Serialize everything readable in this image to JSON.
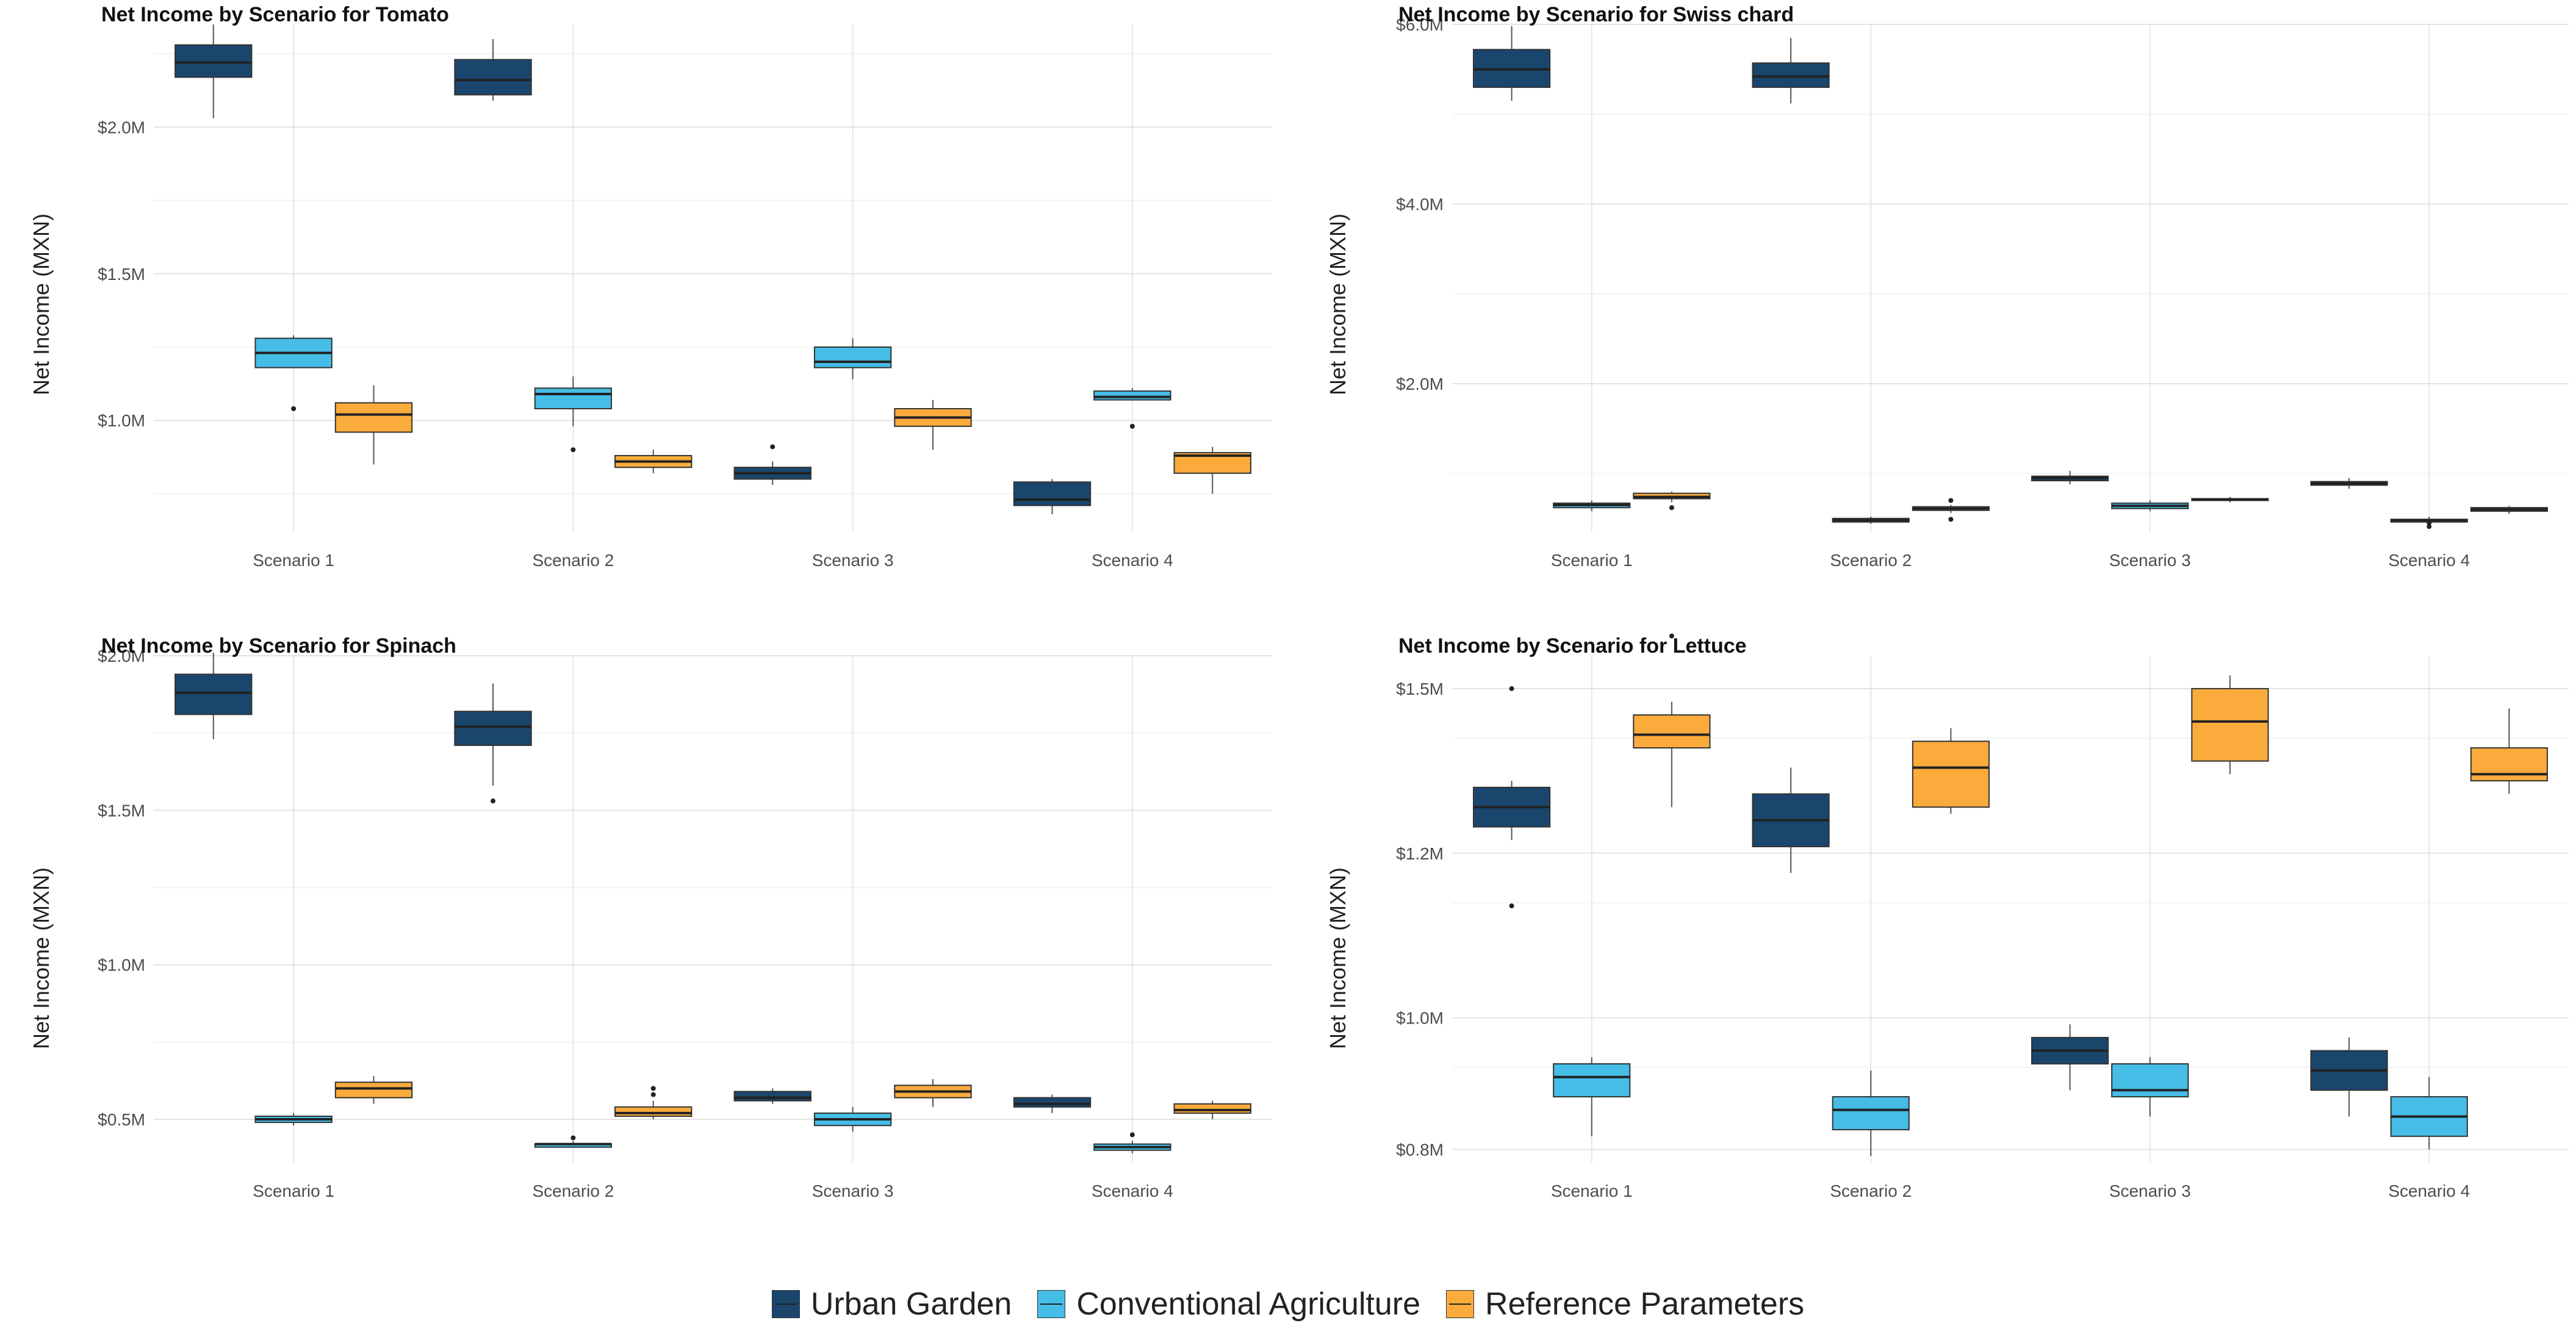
{
  "colors": {
    "Urban Garden": "#1a466e",
    "Conventional Agriculture": "#45bde7",
    "Reference Parameters": "#fbab3c"
  },
  "legend": {
    "items": [
      "Urban Garden",
      "Conventional Agriculture",
      "Reference Parameters"
    ]
  },
  "chart_data": [
    {
      "type": "boxplot",
      "title": "Net Income by Scenario for Tomato",
      "ylabel": "Net Income (MXN)",
      "xlabel": "",
      "ylim": [
        0.62,
        2.35
      ],
      "yticks": [
        2.0,
        1.5,
        1.0
      ],
      "ytick_labels": [
        "$2.0M",
        "$1.5M",
        "$1.0M"
      ],
      "categories": [
        "Scenario 1",
        "Scenario 2",
        "Scenario 3",
        "Scenario 4"
      ],
      "grid": true,
      "series": [
        {
          "name": "Urban Garden",
          "boxes": [
            {
              "min": 2.03,
              "q1": 2.17,
              "median": 2.22,
              "q3": 2.28,
              "max": 2.35,
              "outliers": []
            },
            {
              "min": 2.09,
              "q1": 2.11,
              "median": 2.16,
              "q3": 2.23,
              "max": 2.3,
              "outliers": []
            },
            {
              "min": 0.78,
              "q1": 0.8,
              "median": 0.82,
              "q3": 0.84,
              "max": 0.86,
              "outliers": [
                0.91
              ]
            },
            {
              "min": 0.68,
              "q1": 0.71,
              "median": 0.73,
              "q3": 0.79,
              "max": 0.8,
              "outliers": []
            }
          ]
        },
        {
          "name": "Conventional Agriculture",
          "boxes": [
            {
              "min": 1.18,
              "q1": 1.18,
              "median": 1.23,
              "q3": 1.28,
              "max": 1.29,
              "outliers": [
                1.04
              ]
            },
            {
              "min": 0.98,
              "q1": 1.04,
              "median": 1.09,
              "q3": 1.11,
              "max": 1.15,
              "outliers": [
                0.9
              ]
            },
            {
              "min": 1.14,
              "q1": 1.18,
              "median": 1.2,
              "q3": 1.25,
              "max": 1.28,
              "outliers": []
            },
            {
              "min": 1.07,
              "q1": 1.07,
              "median": 1.08,
              "q3": 1.1,
              "max": 1.11,
              "outliers": [
                0.98
              ]
            }
          ]
        },
        {
          "name": "Reference Parameters",
          "boxes": [
            {
              "min": 0.85,
              "q1": 0.96,
              "median": 1.02,
              "q3": 1.06,
              "max": 1.12,
              "outliers": []
            },
            {
              "min": 0.82,
              "q1": 0.84,
              "median": 0.86,
              "q3": 0.88,
              "max": 0.9,
              "outliers": []
            },
            {
              "min": 0.9,
              "q1": 0.98,
              "median": 1.01,
              "q3": 1.04,
              "max": 1.07,
              "outliers": []
            },
            {
              "min": 0.75,
              "q1": 0.82,
              "median": 0.88,
              "q3": 0.89,
              "max": 0.91,
              "outliers": []
            }
          ]
        }
      ]
    },
    {
      "type": "boxplot",
      "title": "Net Income by Scenario for Swiss chard",
      "ylabel": "Net Income (MXN)",
      "xlabel": "",
      "ylim": [
        0.35,
        6.0
      ],
      "yticks": [
        6.0,
        4.0,
        2.0
      ],
      "ytick_labels": [
        "$6.0M",
        "$4.0M",
        "$2.0M"
      ],
      "categories": [
        "Scenario 1",
        "Scenario 2",
        "Scenario 3",
        "Scenario 4"
      ],
      "grid": true,
      "series": [
        {
          "name": "Urban Garden",
          "boxes": [
            {
              "min": 5.15,
              "q1": 5.3,
              "median": 5.5,
              "q3": 5.72,
              "max": 5.98,
              "outliers": []
            },
            {
              "min": 5.12,
              "q1": 5.3,
              "median": 5.42,
              "q3": 5.57,
              "max": 5.85,
              "outliers": []
            },
            {
              "min": 0.88,
              "q1": 0.92,
              "median": 0.95,
              "q3": 0.97,
              "max": 1.03,
              "outliers": []
            },
            {
              "min": 0.83,
              "q1": 0.87,
              "median": 0.89,
              "q3": 0.91,
              "max": 0.95,
              "outliers": []
            }
          ]
        },
        {
          "name": "Conventional Agriculture",
          "boxes": [
            {
              "min": 0.58,
              "q1": 0.62,
              "median": 0.65,
              "q3": 0.67,
              "max": 0.7,
              "outliers": []
            },
            {
              "min": 0.44,
              "q1": 0.46,
              "median": 0.48,
              "q3": 0.5,
              "max": 0.52,
              "outliers": []
            },
            {
              "min": 0.58,
              "q1": 0.61,
              "median": 0.64,
              "q3": 0.67,
              "max": 0.7,
              "outliers": []
            },
            {
              "min": 0.43,
              "q1": 0.46,
              "median": 0.48,
              "q3": 0.49,
              "max": 0.52,
              "outliers": [
                0.41,
                0.45
              ]
            }
          ]
        },
        {
          "name": "Reference Parameters",
          "boxes": [
            {
              "min": 0.68,
              "q1": 0.72,
              "median": 0.74,
              "q3": 0.78,
              "max": 0.8,
              "outliers": [
                0.62
              ]
            },
            {
              "min": 0.56,
              "q1": 0.59,
              "median": 0.61,
              "q3": 0.63,
              "max": 0.65,
              "outliers": [
                0.49,
                0.7
              ]
            },
            {
              "min": 0.68,
              "q1": 0.7,
              "median": 0.71,
              "q3": 0.72,
              "max": 0.74,
              "outliers": []
            },
            {
              "min": 0.55,
              "q1": 0.58,
              "median": 0.6,
              "q3": 0.62,
              "max": 0.64,
              "outliers": []
            }
          ]
        }
      ]
    },
    {
      "type": "boxplot",
      "title": "Net Income by Scenario for Spinach",
      "ylabel": "Net Income (MXN)",
      "xlabel": "",
      "ylim": [
        0.36,
        2.0
      ],
      "yticks": [
        2.0,
        1.5,
        1.0,
        0.5
      ],
      "ytick_labels": [
        "$2.0M",
        "$1.5M",
        "$1.0M",
        "$0.5M"
      ],
      "categories": [
        "Scenario 1",
        "Scenario 2",
        "Scenario 3",
        "Scenario 4"
      ],
      "grid": true,
      "series": [
        {
          "name": "Urban Garden",
          "boxes": [
            {
              "min": 1.73,
              "q1": 1.81,
              "median": 1.88,
              "q3": 1.94,
              "max": 2.01,
              "outliers": []
            },
            {
              "min": 1.58,
              "q1": 1.71,
              "median": 1.77,
              "q3": 1.82,
              "max": 1.91,
              "outliers": [
                1.53
              ]
            },
            {
              "min": 0.55,
              "q1": 0.56,
              "median": 0.57,
              "q3": 0.59,
              "max": 0.6,
              "outliers": []
            },
            {
              "min": 0.52,
              "q1": 0.54,
              "median": 0.55,
              "q3": 0.57,
              "max": 0.58,
              "outliers": []
            }
          ]
        },
        {
          "name": "Conventional Agriculture",
          "boxes": [
            {
              "min": 0.48,
              "q1": 0.49,
              "median": 0.5,
              "q3": 0.51,
              "max": 0.52,
              "outliers": []
            },
            {
              "min": 0.41,
              "q1": 0.41,
              "median": 0.42,
              "q3": 0.42,
              "max": 0.43,
              "outliers": [
                0.44
              ]
            },
            {
              "min": 0.46,
              "q1": 0.48,
              "median": 0.5,
              "q3": 0.52,
              "max": 0.54,
              "outliers": []
            },
            {
              "min": 0.39,
              "q1": 0.4,
              "median": 0.41,
              "q3": 0.42,
              "max": 0.43,
              "outliers": [
                0.45
              ]
            }
          ]
        },
        {
          "name": "Reference Parameters",
          "boxes": [
            {
              "min": 0.55,
              "q1": 0.57,
              "median": 0.6,
              "q3": 0.62,
              "max": 0.64,
              "outliers": []
            },
            {
              "min": 0.5,
              "q1": 0.51,
              "median": 0.52,
              "q3": 0.54,
              "max": 0.56,
              "outliers": [
                0.58,
                0.6
              ]
            },
            {
              "min": 0.54,
              "q1": 0.57,
              "median": 0.59,
              "q3": 0.61,
              "max": 0.63,
              "outliers": []
            },
            {
              "min": 0.5,
              "q1": 0.52,
              "median": 0.53,
              "q3": 0.55,
              "max": 0.56,
              "outliers": []
            }
          ]
        }
      ]
    },
    {
      "type": "boxplot",
      "title": "Net Income by Scenario for Lettuce",
      "ylabel": "Net Income (MXN)",
      "xlabel": "",
      "ylim": [
        0.78,
        1.55
      ],
      "yticks": [
        1.5,
        1.25,
        1.0,
        0.8
      ],
      "ytick_labels": [
        "$1.5M",
        "$1.2M",
        "$1.0M",
        "$0.8M"
      ],
      "categories": [
        "Scenario 1",
        "Scenario 2",
        "Scenario 3",
        "Scenario 4"
      ],
      "grid": true,
      "series": [
        {
          "name": "Urban Garden",
          "boxes": [
            {
              "min": 1.27,
              "q1": 1.29,
              "median": 1.32,
              "q3": 1.35,
              "max": 1.36,
              "outliers": [
                1.17,
                1.5
              ]
            },
            {
              "min": 1.22,
              "q1": 1.26,
              "median": 1.3,
              "q3": 1.34,
              "max": 1.38,
              "outliers": []
            },
            {
              "min": 0.89,
              "q1": 0.93,
              "median": 0.95,
              "q3": 0.97,
              "max": 0.99,
              "outliers": []
            },
            {
              "min": 0.85,
              "q1": 0.89,
              "median": 0.92,
              "q3": 0.95,
              "max": 0.97,
              "outliers": []
            }
          ]
        },
        {
          "name": "Conventional Agriculture",
          "boxes": [
            {
              "min": 0.82,
              "q1": 0.88,
              "median": 0.91,
              "q3": 0.93,
              "max": 0.94,
              "outliers": []
            },
            {
              "min": 0.79,
              "q1": 0.83,
              "median": 0.86,
              "q3": 0.88,
              "max": 0.92,
              "outliers": []
            },
            {
              "min": 0.85,
              "q1": 0.88,
              "median": 0.89,
              "q3": 0.93,
              "max": 0.94,
              "outliers": []
            },
            {
              "min": 0.8,
              "q1": 0.82,
              "median": 0.85,
              "q3": 0.88,
              "max": 0.91,
              "outliers": []
            }
          ]
        },
        {
          "name": "Reference Parameters",
          "boxes": [
            {
              "min": 1.32,
              "q1": 1.41,
              "median": 1.43,
              "q3": 1.46,
              "max": 1.48,
              "outliers": [
                1.58
              ]
            },
            {
              "min": 1.31,
              "q1": 1.32,
              "median": 1.38,
              "q3": 1.42,
              "max": 1.44,
              "outliers": []
            },
            {
              "min": 1.37,
              "q1": 1.39,
              "median": 1.45,
              "q3": 1.5,
              "max": 1.52,
              "outliers": []
            },
            {
              "min": 1.34,
              "q1": 1.36,
              "median": 1.37,
              "q3": 1.41,
              "max": 1.47,
              "outliers": []
            }
          ]
        }
      ]
    }
  ]
}
